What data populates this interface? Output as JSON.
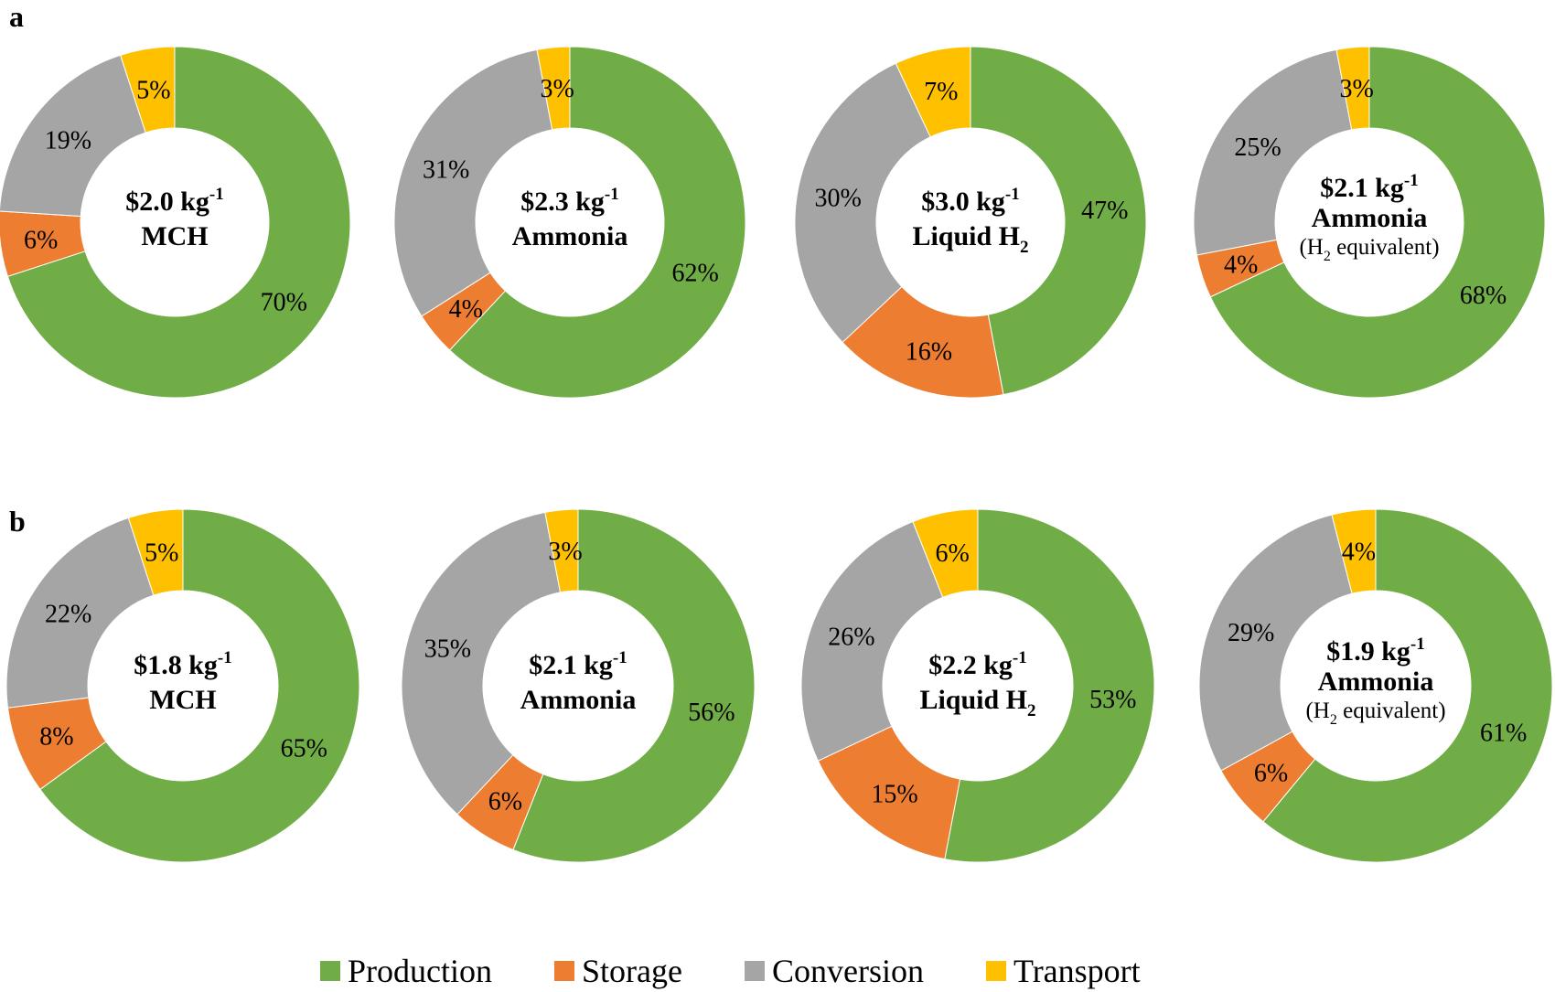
{
  "panels": [
    {
      "label": "a"
    },
    {
      "label": "b"
    }
  ],
  "colors": {
    "Production": "#70ad47",
    "Storage": "#ed7d31",
    "Conversion": "#a5a5a5",
    "Transport": "#ffc000"
  },
  "legend": {
    "items": [
      {
        "name": "Production",
        "color": "#70ad47"
      },
      {
        "name": "Storage",
        "color": "#ed7d31"
      },
      {
        "name": "Conversion",
        "color": "#a5a5a5"
      },
      {
        "name": "Transport",
        "color": "#ffc000"
      }
    ]
  },
  "chart_data": [
    {
      "type": "pie",
      "panel": "a",
      "title": "$2.0 kg-1 MCH",
      "price": "$2.0 kg",
      "price_exp": "-1",
      "name": "MCH",
      "name_sub": "",
      "note": "",
      "note_sub": "",
      "note_tail": "",
      "categories": [
        "Production",
        "Storage",
        "Conversion",
        "Transport"
      ],
      "values": [
        70,
        6,
        19,
        5
      ],
      "labels": [
        "70%",
        "6%",
        "19%",
        "5%"
      ]
    },
    {
      "type": "pie",
      "panel": "a",
      "title": "$2.3 kg-1 Ammonia",
      "price": "$2.3 kg",
      "price_exp": "-1",
      "name": "Ammonia",
      "name_sub": "",
      "note": "",
      "note_sub": "",
      "note_tail": "",
      "categories": [
        "Production",
        "Storage",
        "Conversion",
        "Transport"
      ],
      "values": [
        62,
        4,
        31,
        3
      ],
      "labels": [
        "62%",
        "4%",
        "31%",
        "3%"
      ]
    },
    {
      "type": "pie",
      "panel": "a",
      "title": "$3.0 kg-1 Liquid H2",
      "price": "$3.0 kg",
      "price_exp": "-1",
      "name": "Liquid H",
      "name_sub": "2",
      "note": "",
      "note_sub": "",
      "note_tail": "",
      "categories": [
        "Production",
        "Storage",
        "Conversion",
        "Transport"
      ],
      "values": [
        47,
        16,
        30,
        7
      ],
      "labels": [
        "47%",
        "16%",
        "30%",
        "7%"
      ]
    },
    {
      "type": "pie",
      "panel": "a",
      "title": "$2.1 kg-1 Ammonia (H2 equivalent)",
      "price": "$2.1 kg",
      "price_exp": "-1",
      "name": "Ammonia",
      "name_sub": "",
      "note": "(H",
      "note_sub": "2",
      "note_tail": " equivalent)",
      "categories": [
        "Production",
        "Storage",
        "Conversion",
        "Transport"
      ],
      "values": [
        68,
        4,
        25,
        3
      ],
      "labels": [
        "68%",
        "4%",
        "25%",
        "3%"
      ]
    },
    {
      "type": "pie",
      "panel": "b",
      "title": "$1.8 kg-1 MCH",
      "price": "$1.8 kg",
      "price_exp": "-1",
      "name": "MCH",
      "name_sub": "",
      "note": "",
      "note_sub": "",
      "note_tail": "",
      "categories": [
        "Production",
        "Storage",
        "Conversion",
        "Transport"
      ],
      "values": [
        65,
        8,
        22,
        5
      ],
      "labels": [
        "65%",
        "8%",
        "22%",
        "5%"
      ]
    },
    {
      "type": "pie",
      "panel": "b",
      "title": "$2.1 kg-1 Ammonia",
      "price": "$2.1 kg",
      "price_exp": "-1",
      "name": "Ammonia",
      "name_sub": "",
      "note": "",
      "note_sub": "",
      "note_tail": "",
      "categories": [
        "Production",
        "Storage",
        "Conversion",
        "Transport"
      ],
      "values": [
        56,
        6,
        35,
        3
      ],
      "labels": [
        "56%",
        "6%",
        "35%",
        "3%"
      ]
    },
    {
      "type": "pie",
      "panel": "b",
      "title": "$2.2 kg-1 Liquid H2",
      "price": "$2.2 kg",
      "price_exp": "-1",
      "name": "Liquid H",
      "name_sub": "2",
      "note": "",
      "note_sub": "",
      "note_tail": "",
      "categories": [
        "Production",
        "Storage",
        "Conversion",
        "Transport"
      ],
      "values": [
        53,
        15,
        26,
        6
      ],
      "labels": [
        "53%",
        "15%",
        "26%",
        "6%"
      ]
    },
    {
      "type": "pie",
      "panel": "b",
      "title": "$1.9 kg-1 Ammonia (H2 equivalent)",
      "price": "$1.9 kg",
      "price_exp": "-1",
      "name": "Ammonia",
      "name_sub": "",
      "note": "(H",
      "note_sub": "2",
      "note_tail": " equivalent)",
      "categories": [
        "Production",
        "Storage",
        "Conversion",
        "Transport"
      ],
      "values": [
        61,
        6,
        29,
        4
      ],
      "labels": [
        "61%",
        "6%",
        "29%",
        "4%"
      ]
    }
  ]
}
